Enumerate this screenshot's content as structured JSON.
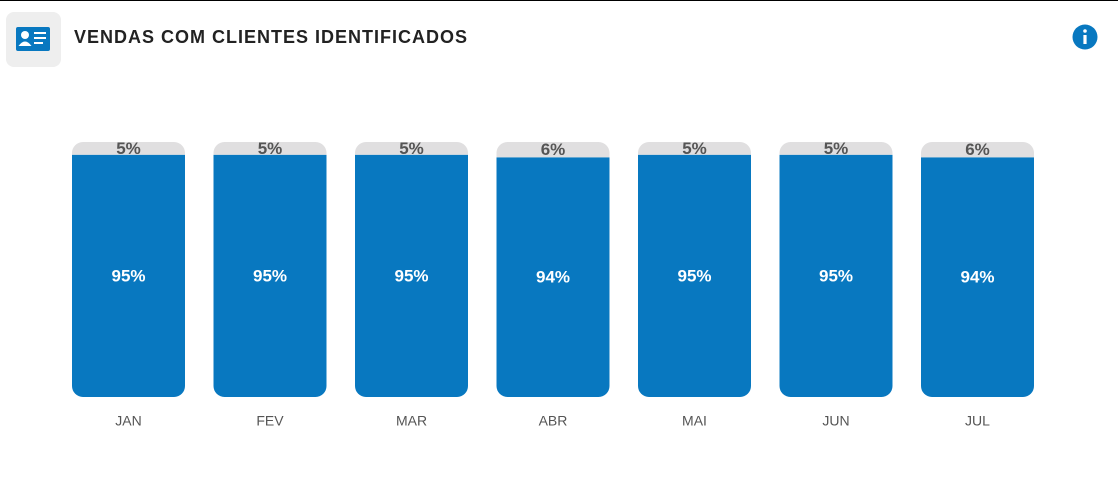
{
  "chart_data": {
    "type": "bar",
    "stacked": true,
    "title": "VENDAS COM CLIENTES IDENTIFICADOS",
    "categories": [
      "JAN",
      "FEV",
      "MAR",
      "ABR",
      "MAI",
      "JUN",
      "JUL"
    ],
    "series": [
      {
        "color": "#0878c0",
        "values": [
          95,
          95,
          95,
          94,
          95,
          95,
          94
        ],
        "value_labels": [
          "95%",
          "95%",
          "95%",
          "94%",
          "95%",
          "95%",
          "94%"
        ]
      },
      {
        "color": "#e0dfe0",
        "values": [
          5,
          5,
          5,
          6,
          5,
          5,
          6
        ],
        "value_labels": [
          "5%",
          "5%",
          "5%",
          "6%",
          "5%",
          "5%",
          "6%"
        ]
      }
    ],
    "ylim": [
      0,
      100
    ]
  }
}
